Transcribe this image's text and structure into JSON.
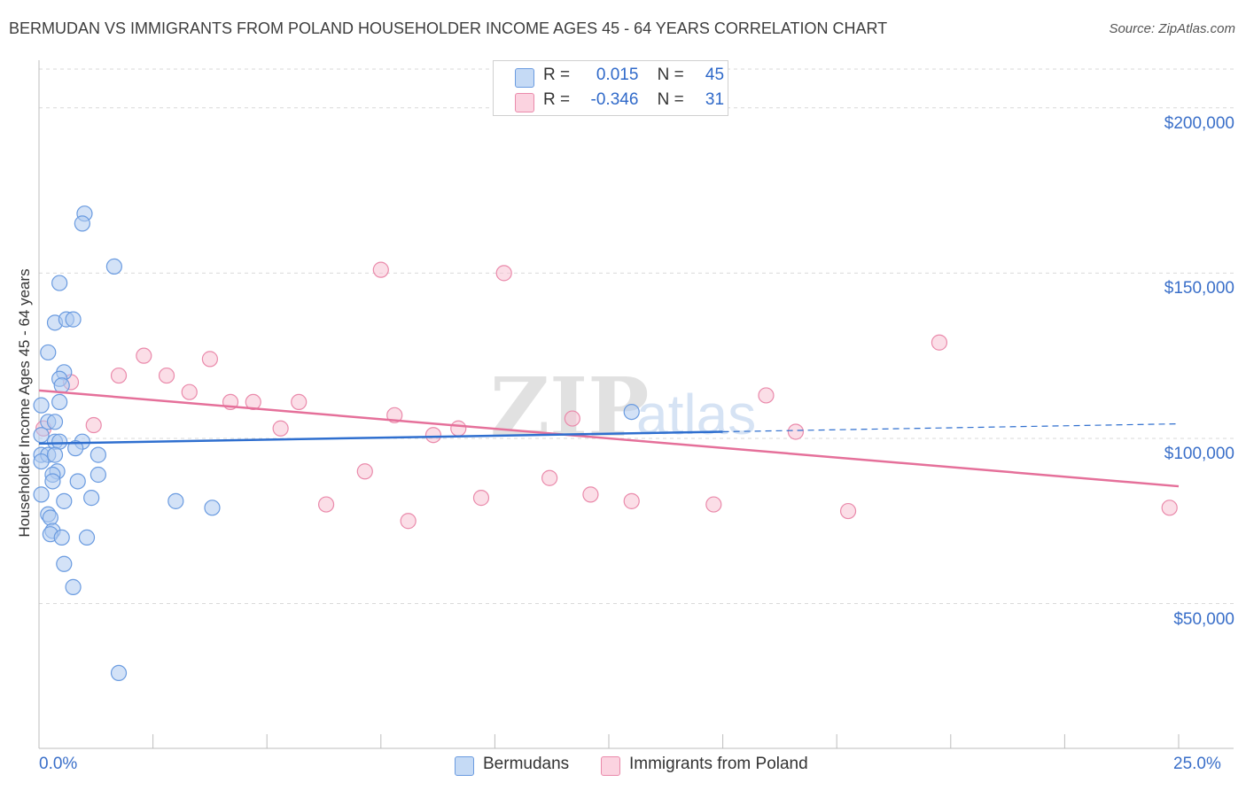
{
  "title": "BERMUDAN VS IMMIGRANTS FROM POLAND HOUSEHOLDER INCOME AGES 45 - 64 YEARS CORRELATION CHART",
  "source": "Source: ZipAtlas.com",
  "watermark": {
    "zip": "ZIP",
    "atlas": "atlas"
  },
  "colors": {
    "blue_fill": "#aecbf0",
    "blue_stroke": "#6a9be0",
    "blue_line": "#2f6fcf",
    "pink_fill": "#f7c3d4",
    "pink_stroke": "#ea8aab",
    "pink_line": "#e5709a",
    "axis_text": "#3a6fc9",
    "grid": "#d9d9d9"
  },
  "legend": {
    "rows": [
      {
        "r_label": "R =",
        "r_value": "0.015",
        "n_label": "N =",
        "n_value": "45"
      },
      {
        "r_label": "R =",
        "r_value": "-0.346",
        "n_label": "N =",
        "n_value": "31"
      }
    ]
  },
  "bottom_legend": [
    "Bermudans",
    "Immigrants from Poland"
  ],
  "chart_data": {
    "type": "scatter",
    "title": "BERMUDAN VS IMMIGRANTS FROM POLAND HOUSEHOLDER INCOME AGES 45 - 64 YEARS CORRELATION CHART",
    "ylabel": "Householder Income Ages 45 - 64 years",
    "xlabel": "",
    "xlim": [
      0,
      25
    ],
    "ylim": [
      7000,
      212000
    ],
    "x_ticks": [
      "0.0%",
      "25.0%"
    ],
    "y_ticks": [
      {
        "value": 50000,
        "label": "$50,000"
      },
      {
        "value": 100000,
        "label": "$100,000"
      },
      {
        "value": 150000,
        "label": "$150,000"
      },
      {
        "value": 200000,
        "label": "$200,000"
      }
    ],
    "grid": true,
    "series": [
      {
        "name": "Bermudans",
        "points": [
          [
            0.2,
            105000
          ],
          [
            1.0,
            168000
          ],
          [
            0.95,
            165000
          ],
          [
            1.65,
            152000
          ],
          [
            0.45,
            147000
          ],
          [
            0.35,
            135000
          ],
          [
            0.6,
            136000
          ],
          [
            0.75,
            136000
          ],
          [
            0.2,
            126000
          ],
          [
            0.55,
            120000
          ],
          [
            0.45,
            118000
          ],
          [
            0.5,
            116000
          ],
          [
            0.45,
            111000
          ],
          [
            0.05,
            110000
          ],
          [
            0.35,
            105000
          ],
          [
            0.05,
            101000
          ],
          [
            0.35,
            99000
          ],
          [
            0.45,
            99000
          ],
          [
            0.95,
            99000
          ],
          [
            0.8,
            97000
          ],
          [
            0.05,
            95000
          ],
          [
            0.2,
            95000
          ],
          [
            0.35,
            95000
          ],
          [
            1.3,
            95000
          ],
          [
            0.05,
            93000
          ],
          [
            0.4,
            90000
          ],
          [
            0.3,
            89000
          ],
          [
            1.3,
            89000
          ],
          [
            0.3,
            87000
          ],
          [
            0.85,
            87000
          ],
          [
            0.05,
            83000
          ],
          [
            1.15,
            82000
          ],
          [
            0.55,
            81000
          ],
          [
            3.8,
            79000
          ],
          [
            3.0,
            81000
          ],
          [
            0.2,
            77000
          ],
          [
            0.25,
            76000
          ],
          [
            0.3,
            72000
          ],
          [
            0.25,
            71000
          ],
          [
            0.5,
            70000
          ],
          [
            1.05,
            70000
          ],
          [
            0.55,
            62000
          ],
          [
            0.75,
            55000
          ],
          [
            1.75,
            29000
          ],
          [
            13.0,
            108000
          ]
        ]
      },
      {
        "name": "Immigrants from Poland",
        "points": [
          [
            0.1,
            103000
          ],
          [
            0.7,
            117000
          ],
          [
            1.2,
            104000
          ],
          [
            1.75,
            119000
          ],
          [
            2.3,
            125000
          ],
          [
            2.8,
            119000
          ],
          [
            3.3,
            114000
          ],
          [
            3.75,
            124000
          ],
          [
            4.2,
            111000
          ],
          [
            4.7,
            111000
          ],
          [
            5.3,
            103000
          ],
          [
            5.7,
            111000
          ],
          [
            6.3,
            80000
          ],
          [
            7.15,
            90000
          ],
          [
            7.5,
            151000
          ],
          [
            7.8,
            107000
          ],
          [
            8.1,
            75000
          ],
          [
            8.65,
            101000
          ],
          [
            9.2,
            103000
          ],
          [
            9.7,
            82000
          ],
          [
            10.2,
            150000
          ],
          [
            11.2,
            88000
          ],
          [
            11.7,
            106000
          ],
          [
            12.1,
            83000
          ],
          [
            13.0,
            81000
          ],
          [
            14.8,
            80000
          ],
          [
            15.95,
            113000
          ],
          [
            16.6,
            102000
          ],
          [
            17.75,
            78000
          ],
          [
            19.75,
            129000
          ],
          [
            24.8,
            79000
          ]
        ]
      }
    ],
    "trendlines": [
      {
        "series": "Bermudans",
        "solid": [
          [
            0,
            98400
          ],
          [
            15,
            102000
          ]
        ],
        "dashed": [
          [
            15,
            102000
          ],
          [
            25,
            104400
          ]
        ]
      },
      {
        "series": "Immigrants from Poland",
        "solid": [
          [
            0,
            114500
          ],
          [
            25,
            85500
          ]
        ]
      }
    ]
  }
}
